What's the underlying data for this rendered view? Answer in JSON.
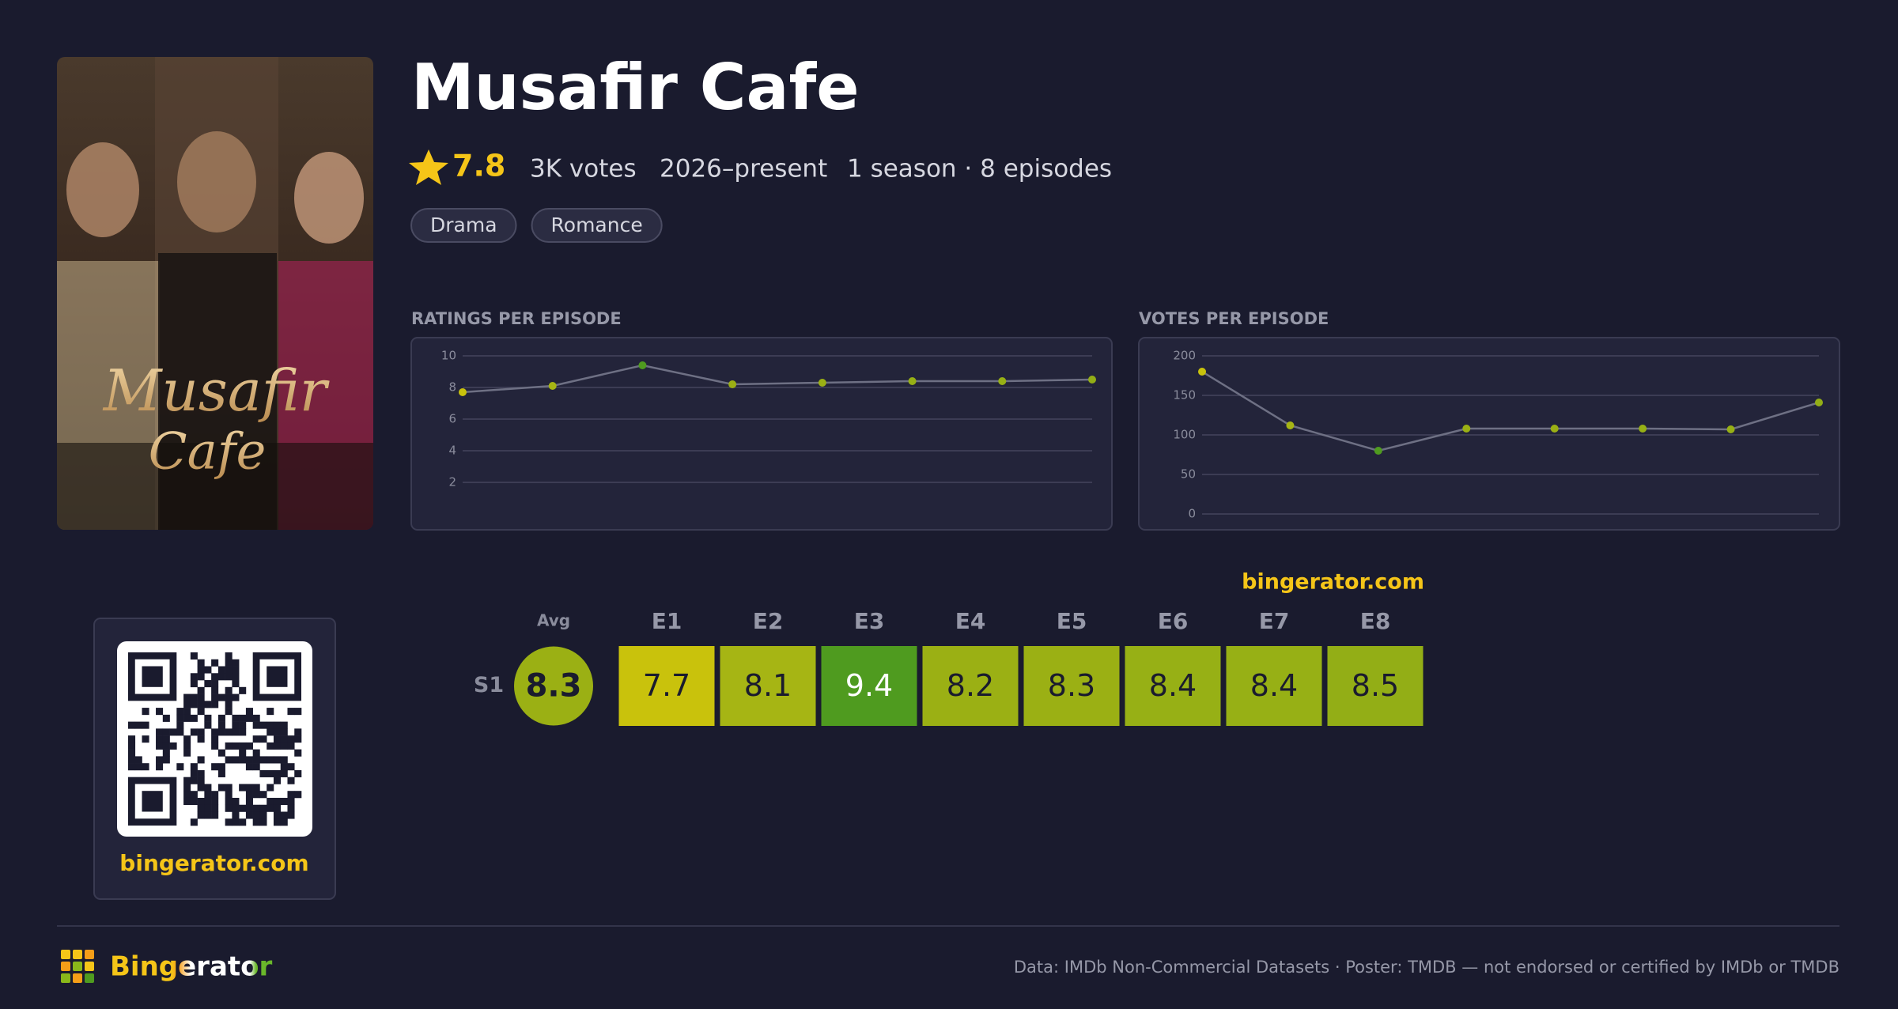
{
  "poster": {
    "lines": [
      "Musafir",
      "Cafe"
    ]
  },
  "header": {
    "title": "Musafir Cafe",
    "rating": 7.8,
    "votes": "3K votes",
    "years": "2026–present",
    "episodes": "1 season · 8 episodes",
    "genres": [
      "Drama",
      "Romance"
    ]
  },
  "chart_data": [
    {
      "type": "line",
      "title": "RATINGS PER EPISODE",
      "values": [
        7.7,
        8.1,
        9.4,
        8.2,
        8.3,
        8.4,
        8.4,
        8.5
      ],
      "ylim": [
        0,
        10
      ],
      "yticks": [
        2,
        4,
        6,
        8,
        10
      ],
      "grid": true,
      "color": "#6e7084"
    },
    {
      "type": "line",
      "title": "VOTES PER EPISODE",
      "values": [
        180,
        112,
        80,
        108,
        108,
        108,
        107,
        141
      ],
      "ylim": [
        0,
        200
      ],
      "yticks": [
        0,
        50,
        100,
        150,
        200
      ],
      "grid": true,
      "color": "#6e7084"
    }
  ],
  "heatmap": {
    "watermark": "bingerator.com",
    "avg_label": "Avg",
    "avg": 8.3,
    "avg_color": "#9bb014",
    "seasons": [
      "S1"
    ],
    "episodes": [
      "E1",
      "E2",
      "E3",
      "E4",
      "E5",
      "E6",
      "E7",
      "E8"
    ],
    "rows": [
      [
        7.7,
        8.1,
        9.4,
        8.2,
        8.3,
        8.4,
        8.4,
        8.5
      ]
    ],
    "colors": [
      [
        "#c9c20c",
        "#a6b514",
        "#4f9b1f",
        "#9bb014",
        "#9bb014",
        "#97b015",
        "#97b015",
        "#93ae16"
      ]
    ]
  },
  "qr": {
    "caption": "bingerator.com"
  },
  "footer": {
    "brand": "Bingerator",
    "note": "Data: IMDb Non-Commercial Datasets · Poster: TMDB — not endorsed or certified by IMDb or TMDB"
  }
}
